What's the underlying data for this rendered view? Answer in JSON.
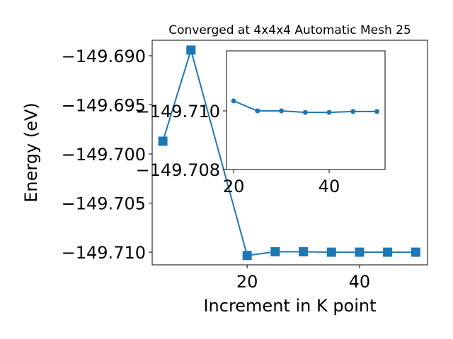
{
  "chart_data": [
    {
      "type": "line",
      "title": "Converged at 4x4x4 Automatic Mesh 25",
      "x_label": "Increment in K point",
      "y_label": "Energy (eV)",
      "x": [
        5,
        10,
        20,
        25,
        30,
        35,
        40,
        45,
        50
      ],
      "series": [
        {
          "color": "#1f77b4",
          "marker": "square",
          "values": [
            -149.6987,
            -149.68942,
            -149.71034,
            -149.70996,
            -149.70996,
            -149.71,
            -149.71,
            -149.71,
            -149.71
          ]
        }
      ],
      "xlim": [
        3.1,
        52.1
      ],
      "xticks": [
        20,
        40
      ],
      "ylim": [
        -149.71129,
        -149.68842
      ],
      "yticks": [
        {
          "value": -149.71,
          "label": "−149.710"
        },
        {
          "value": -149.705,
          "label": "−149.705"
        },
        {
          "value": -149.7,
          "label": "−149.700"
        },
        {
          "value": -149.695,
          "label": "−149.695"
        },
        {
          "value": -149.69,
          "label": "−149.690"
        }
      ]
    },
    {
      "type": "line",
      "x": [
        20,
        25,
        30,
        35,
        40,
        45,
        50
      ],
      "series": [
        {
          "color": "#1f77b4",
          "marker": "circle",
          "values": [
            -149.71034,
            -149.71,
            -149.71,
            -149.70995,
            -149.70995,
            -149.70998,
            -149.70998
          ]
        }
      ],
      "xlim": [
        18.5,
        51.7
      ],
      "xticks": [
        20,
        40
      ],
      "ylim": [
        -149.708,
        -149.71205
      ],
      "yticks": [
        {
          "value": -149.71,
          "label": "−149.710"
        },
        {
          "value": -149.708,
          "label": "−149.708"
        }
      ]
    }
  ]
}
